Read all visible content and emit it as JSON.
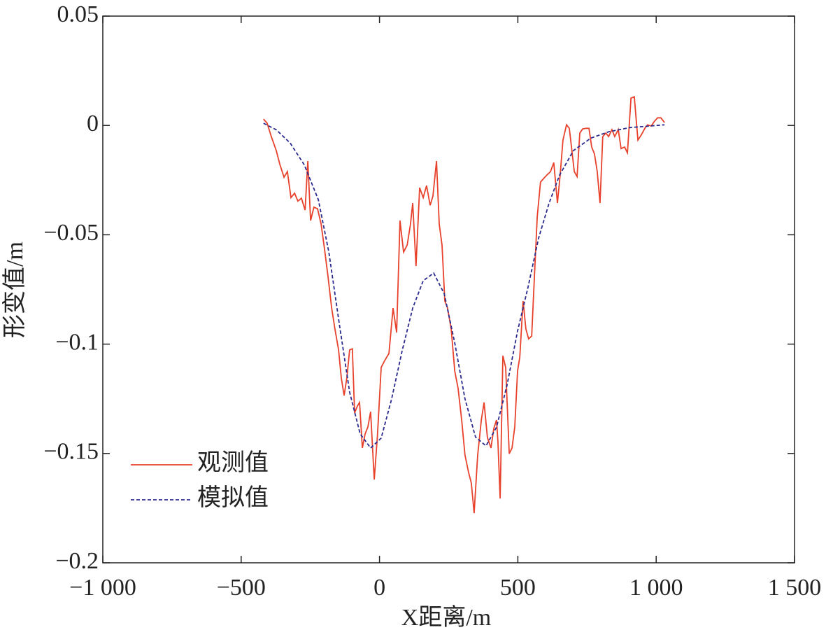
{
  "chart_data": {
    "type": "line",
    "xlabel": "X距离/m",
    "ylabel": "形变值/m",
    "xlim": [
      -1000,
      1500
    ],
    "xticks": [
      {
        "value": -1000,
        "label": "−1 000"
      },
      {
        "value": -500,
        "label": "−500"
      },
      0,
      500,
      {
        "value": 1000,
        "label": "1 000"
      },
      {
        "value": 1500,
        "label": "1 500"
      }
    ],
    "ylim": [
      -0.2,
      0.05
    ],
    "yticks": [
      0.05,
      0,
      {
        "value": -0.05,
        "label": "−0.05"
      },
      {
        "value": -0.1,
        "label": "−0.1"
      },
      {
        "value": -0.15,
        "label": "−0.15"
      },
      {
        "value": -0.2,
        "label": "−0.2"
      }
    ],
    "legend": "lower left",
    "series": [
      {
        "name": "观测值",
        "color": "#e8412c",
        "dash": false,
        "x": [
          -419,
          -406,
          -391,
          -373,
          -360,
          -345,
          -333,
          -320,
          -307,
          -295,
          -282,
          -269,
          -259,
          -249,
          -237,
          -224,
          -211,
          -199,
          -186,
          -173,
          -161,
          -148,
          -138,
          -128,
          -118,
          -108,
          -98,
          -90,
          -80,
          -72,
          -62,
          -52,
          -42,
          -32,
          -19,
          -7,
          6,
          19,
          34,
          49,
          62,
          74,
          87,
          100,
          112,
          120,
          132,
          145,
          158,
          170,
          183,
          193,
          206,
          216,
          226,
          236,
          246,
          259,
          272,
          284,
          297,
          309,
          322,
          332,
          342,
          355,
          368,
          378,
          390,
          403,
          413,
          423,
          428,
          436,
          446,
          456,
          469,
          479,
          489,
          499,
          507,
          519,
          529,
          539,
          550,
          560,
          570,
          582,
          593,
          605,
          618,
          630,
          643,
          653,
          663,
          676,
          686,
          694,
          704,
          714,
          724,
          734,
          747,
          757,
          767,
          777,
          787,
          797,
          807,
          818,
          828,
          840,
          850,
          863,
          873,
          886,
          896,
          909,
          921,
          934,
          947,
          959,
          969,
          982,
          992,
          1005,
          1017,
          1030
        ],
        "values": [
          0.0029,
          0.001,
          -0.0051,
          -0.0115,
          -0.0179,
          -0.0237,
          -0.0211,
          -0.033,
          -0.031,
          -0.0346,
          -0.0333,
          -0.0387,
          -0.0163,
          -0.0435,
          -0.0374,
          -0.0381,
          -0.0451,
          -0.0563,
          -0.0691,
          -0.0835,
          -0.0931,
          -0.1027,
          -0.1155,
          -0.1235,
          -0.1155,
          -0.1027,
          -0.1021,
          -0.1315,
          -0.1283,
          -0.1267,
          -0.1475,
          -0.1411,
          -0.1379,
          -0.1309,
          -0.1619,
          -0.1411,
          -0.1107,
          -0.1075,
          -0.1043,
          -0.0835,
          -0.0947,
          -0.0435,
          -0.0579,
          -0.0547,
          -0.0451,
          -0.0355,
          -0.0643,
          -0.0285,
          -0.033,
          -0.0275,
          -0.0365,
          -0.0323,
          -0.0163,
          -0.0451,
          -0.0547,
          -0.0803,
          -0.0835,
          -0.0931,
          -0.1123,
          -0.1203,
          -0.1347,
          -0.1507,
          -0.1587,
          -0.1635,
          -0.1773,
          -0.1507,
          -0.1347,
          -0.1267,
          -0.1427,
          -0.1475,
          -0.1386,
          -0.1347,
          -0.1443,
          -0.1706,
          -0.1053,
          -0.1107,
          -0.1501,
          -0.1475,
          -0.1379,
          -0.1123,
          -0.1059,
          -0.0803,
          -0.0931,
          -0.0976,
          -0.0963,
          -0.0691,
          -0.0419,
          -0.0259,
          -0.0243,
          -0.0227,
          -0.0211,
          -0.017,
          -0.0355,
          -0.0227,
          -0.0067,
          0.0003,
          -0.0013,
          -0.0099,
          -0.0211,
          -0.0234,
          -0.0035,
          -0.0016,
          -0.0013,
          -0.0013,
          -0.0099,
          -0.0131,
          -0.0211,
          -0.0355,
          -0.0051,
          -0.0035,
          -0.0051,
          -0.0019,
          -0.0051,
          -0.0019,
          -0.0106,
          -0.0099,
          -0.0125,
          0.0125,
          0.0131,
          -0.0067,
          -0.0042,
          -0.0013,
          0.0003,
          -0.0003,
          0.0016,
          0.0035,
          0.0035,
          0.0013
        ]
      },
      {
        "name": "模拟值",
        "color": "#2b2b8f",
        "dash": true,
        "x": [
          -419,
          -373,
          -323,
          -272,
          -221,
          -183,
          -146,
          -108,
          -70,
          -32,
          6,
          44,
          82,
          120,
          158,
          196,
          234,
          272,
          309,
          347,
          385,
          423,
          461,
          499,
          537,
          575,
          613,
          651,
          701,
          764,
          828,
          904,
          1030
        ],
        "values": [
          0.001,
          -0.002,
          -0.008,
          -0.018,
          -0.034,
          -0.058,
          -0.09,
          -0.122,
          -0.141,
          -0.1475,
          -0.143,
          -0.125,
          -0.103,
          -0.0835,
          -0.071,
          -0.0675,
          -0.077,
          -0.0995,
          -0.125,
          -0.1425,
          -0.1465,
          -0.138,
          -0.1187,
          -0.094,
          -0.0739,
          -0.0515,
          -0.0355,
          -0.0227,
          -0.0115,
          -0.0058,
          -0.0029,
          -0.001,
          0.0003
        ]
      }
    ]
  }
}
